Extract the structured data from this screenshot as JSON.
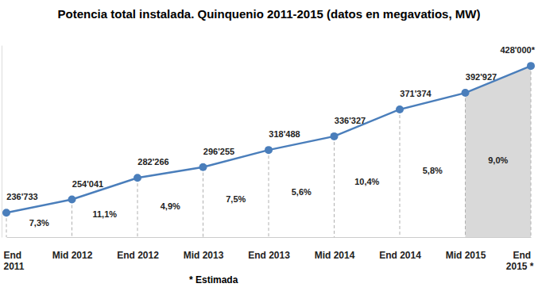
{
  "chart_data": {
    "type": "line",
    "title": "Potencia total instalada. Quinquenio 2011-2015 (datos en megavatios, MW)",
    "categories": [
      "End 2011",
      "Mid 2012",
      "End 2012",
      "Mid 2013",
      "End 2013",
      "Mid 2014",
      "End 2014",
      "Mid 2015",
      "End 2015 *"
    ],
    "values": [
      236733,
      254041,
      282266,
      296255,
      318488,
      336327,
      371374,
      392927,
      428000
    ],
    "value_labels": [
      "236'733",
      "254'041",
      "282'266",
      "296'255",
      "318'488",
      "336'327",
      "371'374",
      "392'927",
      "428'000*"
    ],
    "growth": [
      7.3,
      11.1,
      4.9,
      7.5,
      5.6,
      10.4,
      5.8,
      9.0
    ],
    "growth_labels": [
      "7,3%",
      "11,1%",
      "4,9%",
      "7,5%",
      "5,6%",
      "10,4%",
      "5,8%",
      "9,0%"
    ],
    "note": "* Estimada",
    "color": "#4a7ebb",
    "marker": "circle",
    "data_labels": true,
    "tick_labels": "x",
    "ylim": [
      205000,
      455000
    ]
  }
}
